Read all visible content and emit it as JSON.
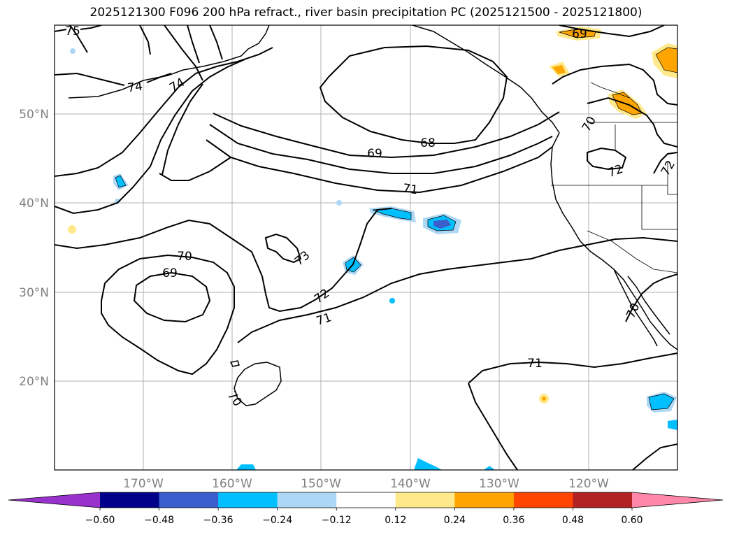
{
  "title": "2025121300 F096 200 hPa refract., river basin precipitation PC (2025121500 - 2025121800)",
  "lat_labels": [
    "50°N",
    "40°N",
    "30°N",
    "20°N"
  ],
  "lon_labels": [
    "170°W",
    "160°W",
    "150°W",
    "140°W",
    "130°W",
    "120°W"
  ],
  "contour_labels": [
    "75",
    "74",
    "74",
    "69",
    "68",
    "71",
    "70",
    "69",
    "73",
    "72",
    "71",
    "71",
    "70",
    "70",
    "72",
    "72",
    "70",
    "69"
  ],
  "colorbar": {
    "ticks": [
      "−0.60",
      "−0.48",
      "−0.36",
      "−0.24",
      "−0.12",
      "0.12",
      "0.24",
      "0.36",
      "0.48",
      "0.60"
    ],
    "colors": [
      "#9932cc",
      "#00008b",
      "#3a5fcd",
      "#00bfff",
      "#add8f5",
      "#ffffff",
      "#ffe98a",
      "#ffa500",
      "#ff4500",
      "#b22222",
      "#ff88aa",
      "#ff88aa"
    ]
  }
}
